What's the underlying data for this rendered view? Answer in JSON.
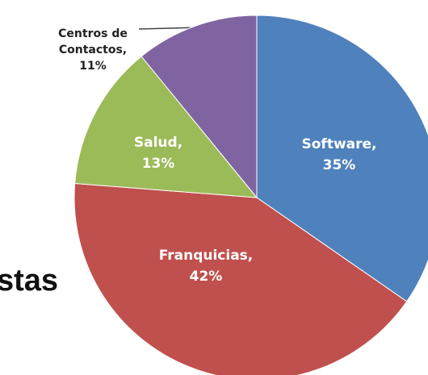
{
  "chart_data": {
    "type": "pie",
    "categories": [
      "Software,",
      "Franquicias,",
      "Salud,",
      "Centros de Contactos,"
    ],
    "values": [
      35,
      42,
      13,
      11
    ],
    "value_labels": [
      "35%",
      "42%",
      "13%",
      "11%"
    ],
    "colors": [
      "#4f81bd",
      "#c0504d",
      "#9bbb59",
      "#8064a2"
    ],
    "annotations": [
      "stas"
    ]
  }
}
